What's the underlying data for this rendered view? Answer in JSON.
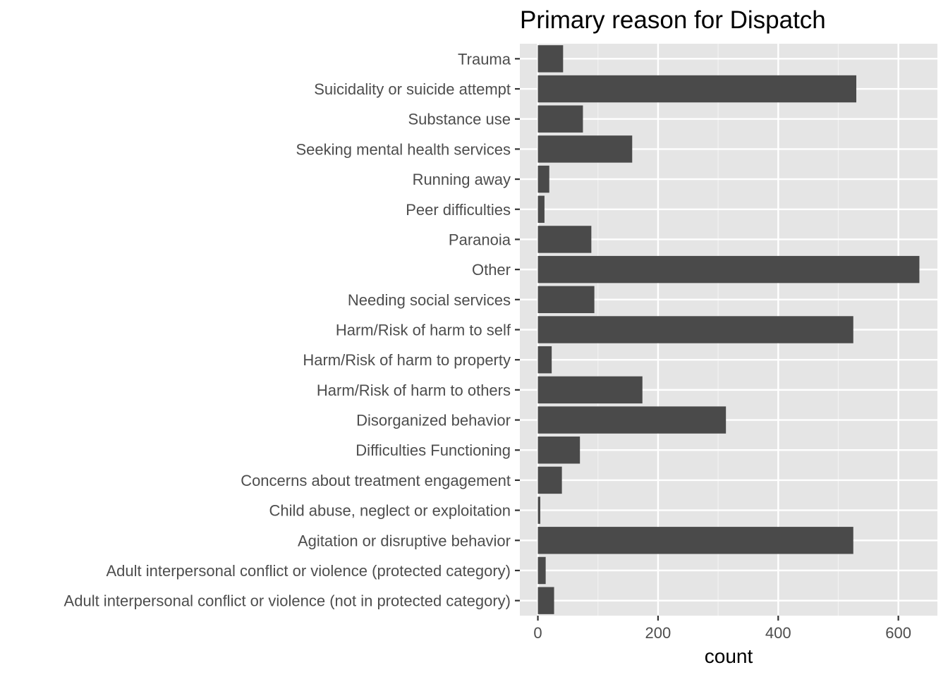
{
  "chart_data": {
    "type": "bar",
    "orientation": "horizontal",
    "title": "Primary reason for Dispatch",
    "xlabel": "count",
    "ylabel": "",
    "xlim": [
      -30,
      665
    ],
    "x_ticks": [
      0,
      200,
      400,
      600
    ],
    "x_tick_labels": [
      "0",
      "200",
      "400",
      "600"
    ],
    "grid": true,
    "legend": "none",
    "colors": {
      "panel": "#e5e5e5",
      "bar": "#4a4a4a",
      "grid_major": "#ffffff",
      "grid_minor": "#f2f2f2",
      "tick_label": "#4d4d4d",
      "title": "#000000"
    },
    "categories": [
      "Trauma",
      "Suicidality or suicide attempt",
      "Substance use",
      "Seeking mental health services",
      "Running away",
      "Peer difficulties",
      "Paranoia",
      "Other",
      "Needing social services",
      "Harm/Risk of harm to self",
      "Harm/Risk of harm to property",
      "Harm/Risk of harm to others",
      "Disorganized behavior",
      "Difficulties Functioning",
      "Concerns about treatment engagement",
      "Child abuse, neglect or exploitation",
      "Agitation or disruptive behavior",
      "Adult interpersonal conflict or violence (protected category)",
      "Adult interpersonal conflict or violence (not in protected category)"
    ],
    "values": [
      42,
      530,
      75,
      157,
      19,
      11,
      89,
      635,
      94,
      525,
      23,
      174,
      313,
      70,
      40,
      4,
      525,
      13,
      27
    ]
  }
}
